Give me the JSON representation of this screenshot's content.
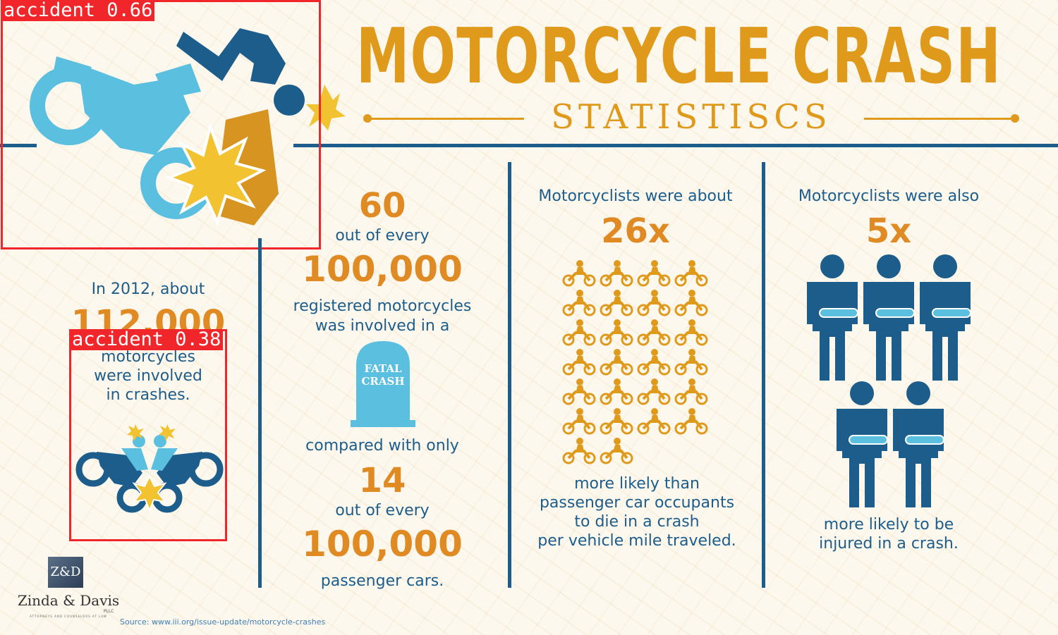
{
  "header": {
    "title": "MOTORCYCLE CRASH",
    "subtitle": "STATISTISCS"
  },
  "colors": {
    "orange": "#e09a1b",
    "blue": "#1c5d8c",
    "light_blue": "#5bbfe0",
    "detection_red": "#f0262b"
  },
  "stat1": {
    "intro": "In 2012, about",
    "number": "112,000",
    "line1": "motorcycles",
    "line2": "were involved",
    "line3": "in crashes."
  },
  "stat2": {
    "number_a": "60",
    "label_a": "out of every",
    "base_a": "100,000",
    "desc1": "registered motorcycles",
    "desc2": "was involved in a",
    "tombstone1": "FATAL",
    "tombstone2": "CRASH",
    "compare": "compared with only",
    "number_b": "14",
    "label_b": "out of every",
    "base_b": "100,000",
    "desc_b": "passenger cars."
  },
  "stat3": {
    "intro": "Motorcyclists were about",
    "multiplier": "26x",
    "icon_count": 26,
    "line1": "more likely than",
    "line2": "passenger car occupants",
    "line3": "to die in a crash",
    "line4": "per vehicle mile traveled."
  },
  "stat4": {
    "intro": "Motorcyclists were also",
    "multiplier": "5x",
    "icon_count": 5,
    "line1": "more likely to be",
    "line2": "injured in a crash."
  },
  "detections": [
    {
      "label": "accident  0.66"
    },
    {
      "label": "accident  0.38"
    }
  ],
  "logo": {
    "mark": "Z&D",
    "name": "Zinda & Davis",
    "suffix": "PLLC",
    "tagline": "ATTORNEYS AND COUNSELORS AT LAW"
  },
  "source": "Source: www.iii.org/issue-update/motorcycle-crashes"
}
